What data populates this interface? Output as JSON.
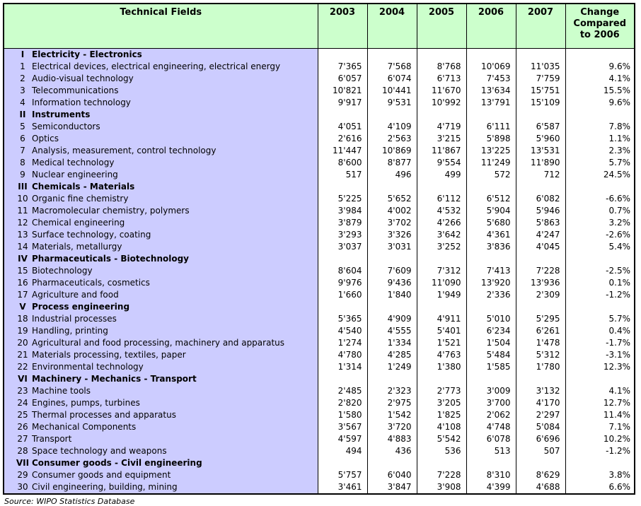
{
  "colors": {
    "header_bg": "#ccffcc",
    "label_col_bg": "#ccccff",
    "border": "#000000",
    "data_bg": "#ffffff"
  },
  "header": {
    "technical_fields_label": "Technical Fields",
    "years": [
      "2003",
      "2004",
      "2005",
      "2006",
      "2007"
    ],
    "change_label": "Change\nCompared\nto 2006"
  },
  "footer": {
    "source": "Source: WIPO Statistics Database"
  },
  "chart_data": {
    "type": "table",
    "title": "Technical Fields",
    "columns": [
      "Technical Fields",
      "2003",
      "2004",
      "2005",
      "2006",
      "2007",
      "Change Compared to 2006"
    ],
    "sections": [
      {
        "numeral": "I",
        "title": "Electricity - Electronics",
        "rows": [
          {
            "num": "1",
            "label": "Electrical devices, electrical engineering, electrical energy",
            "values": [
              "7'365",
              "7'568",
              "8'768",
              "10'069",
              "11'035"
            ],
            "change": "9.6%"
          },
          {
            "num": "2",
            "label": "Audio-visual technology",
            "values": [
              "6'057",
              "6'074",
              "6'713",
              "7'453",
              "7'759"
            ],
            "change": "4.1%"
          },
          {
            "num": "3",
            "label": "Telecommunications",
            "values": [
              "10'821",
              "10'441",
              "11'670",
              "13'634",
              "15'751"
            ],
            "change": "15.5%"
          },
          {
            "num": "4",
            "label": "Information technology",
            "values": [
              "9'917",
              "9'531",
              "10'992",
              "13'791",
              "15'109"
            ],
            "change": "9.6%"
          }
        ]
      },
      {
        "numeral": "II",
        "title": "Instruments",
        "rows": [
          {
            "num": "5",
            "label": "Semiconductors",
            "values": [
              "4'051",
              "4'109",
              "4'719",
              "6'111",
              "6'587"
            ],
            "change": "7.8%"
          },
          {
            "num": "6",
            "label": "Optics",
            "values": [
              "2'616",
              "2'563",
              "3'215",
              "5'898",
              "5'960"
            ],
            "change": "1.1%"
          },
          {
            "num": "7",
            "label": "Analysis, measurement, control technology",
            "values": [
              "11'447",
              "10'869",
              "11'867",
              "13'225",
              "13'531"
            ],
            "change": "2.3%"
          },
          {
            "num": "8",
            "label": "Medical technology",
            "values": [
              "8'600",
              "8'877",
              "9'554",
              "11'249",
              "11'890"
            ],
            "change": "5.7%"
          },
          {
            "num": "9",
            "label": "Nuclear engineering",
            "values": [
              "517",
              "496",
              "499",
              "572",
              "712"
            ],
            "change": "24.5%"
          }
        ]
      },
      {
        "numeral": "III",
        "title": "Chemicals - Materials",
        "rows": [
          {
            "num": "10",
            "label": "Organic fine chemistry",
            "values": [
              "5'225",
              "5'652",
              "6'112",
              "6'512",
              "6'082"
            ],
            "change": "-6.6%"
          },
          {
            "num": "11",
            "label": "Macromolecular chemistry, polymers",
            "values": [
              "3'984",
              "4'002",
              "4'532",
              "5'904",
              "5'946"
            ],
            "change": "0.7%"
          },
          {
            "num": "12",
            "label": "Chemical engineering",
            "values": [
              "3'879",
              "3'702",
              "4'266",
              "5'680",
              "5'863"
            ],
            "change": "3.2%"
          },
          {
            "num": "13",
            "label": "Surface technology, coating",
            "values": [
              "3'293",
              "3'326",
              "3'642",
              "4'361",
              "4'247"
            ],
            "change": "-2.6%"
          },
          {
            "num": "14",
            "label": "Materials, metallurgy",
            "values": [
              "3'037",
              "3'031",
              "3'252",
              "3'836",
              "4'045"
            ],
            "change": "5.4%"
          }
        ]
      },
      {
        "numeral": "IV",
        "title": "Pharmaceuticals - Biotechnology",
        "rows": [
          {
            "num": "15",
            "label": "Biotechnology",
            "values": [
              "8'604",
              "7'609",
              "7'312",
              "7'413",
              "7'228"
            ],
            "change": "-2.5%"
          },
          {
            "num": "16",
            "label": "Pharmaceuticals, cosmetics",
            "values": [
              "9'976",
              "9'436",
              "11'090",
              "13'920",
              "13'936"
            ],
            "change": "0.1%"
          },
          {
            "num": "17",
            "label": "Agriculture and food",
            "values": [
              "1'660",
              "1'840",
              "1'949",
              "2'336",
              "2'309"
            ],
            "change": "-1.2%"
          }
        ]
      },
      {
        "numeral": "V",
        "title": "Process engineering",
        "rows": [
          {
            "num": "18",
            "label": "Industrial processes",
            "values": [
              "5'365",
              "4'909",
              "4'911",
              "5'010",
              "5'295"
            ],
            "change": "5.7%"
          },
          {
            "num": "19",
            "label": "Handling, printing",
            "values": [
              "4'540",
              "4'555",
              "5'401",
              "6'234",
              "6'261"
            ],
            "change": "0.4%"
          },
          {
            "num": "20",
            "label": "Agricultural and food processing, machinery and apparatus",
            "values": [
              "1'274",
              "1'334",
              "1'521",
              "1'504",
              "1'478"
            ],
            "change": "-1.7%"
          },
          {
            "num": "21",
            "label": "Materials processing, textiles, paper",
            "values": [
              "4'780",
              "4'285",
              "4'763",
              "5'484",
              "5'312"
            ],
            "change": "-3.1%"
          },
          {
            "num": "22",
            "label": "Environmental technology",
            "values": [
              "1'314",
              "1'249",
              "1'380",
              "1'585",
              "1'780"
            ],
            "change": "12.3%"
          }
        ]
      },
      {
        "numeral": "VI",
        "title": "Machinery - Mechanics - Transport",
        "rows": [
          {
            "num": "23",
            "label": "Machine tools",
            "values": [
              "2'485",
              "2'323",
              "2'773",
              "3'009",
              "3'132"
            ],
            "change": "4.1%"
          },
          {
            "num": "24",
            "label": "Engines, pumps, turbines",
            "values": [
              "2'820",
              "2'975",
              "3'205",
              "3'700",
              "4'170"
            ],
            "change": "12.7%"
          },
          {
            "num": "25",
            "label": "Thermal processes and apparatus",
            "values": [
              "1'580",
              "1'542",
              "1'825",
              "2'062",
              "2'297"
            ],
            "change": "11.4%"
          },
          {
            "num": "26",
            "label": "Mechanical Components",
            "values": [
              "3'567",
              "3'720",
              "4'108",
              "4'748",
              "5'084"
            ],
            "change": "7.1%"
          },
          {
            "num": "27",
            "label": "Transport",
            "values": [
              "4'597",
              "4'883",
              "5'542",
              "6'078",
              "6'696"
            ],
            "change": "10.2%"
          },
          {
            "num": "28",
            "label": "Space technology and weapons",
            "values": [
              "494",
              "436",
              "536",
              "513",
              "507"
            ],
            "change": "-1.2%"
          }
        ]
      },
      {
        "numeral": "VII",
        "title": "Consumer goods - Civil engineering",
        "rows": [
          {
            "num": "29",
            "label": "Consumer goods and equipment",
            "values": [
              "5'757",
              "6'040",
              "7'228",
              "8'310",
              "8'629"
            ],
            "change": "3.8%"
          },
          {
            "num": "30",
            "label": "Civil engineering, building, mining",
            "values": [
              "3'461",
              "3'847",
              "3'908",
              "4'399",
              "4'688"
            ],
            "change": "6.6%"
          }
        ]
      }
    ],
    "source_note": "Source: WIPO Statistics Database"
  }
}
